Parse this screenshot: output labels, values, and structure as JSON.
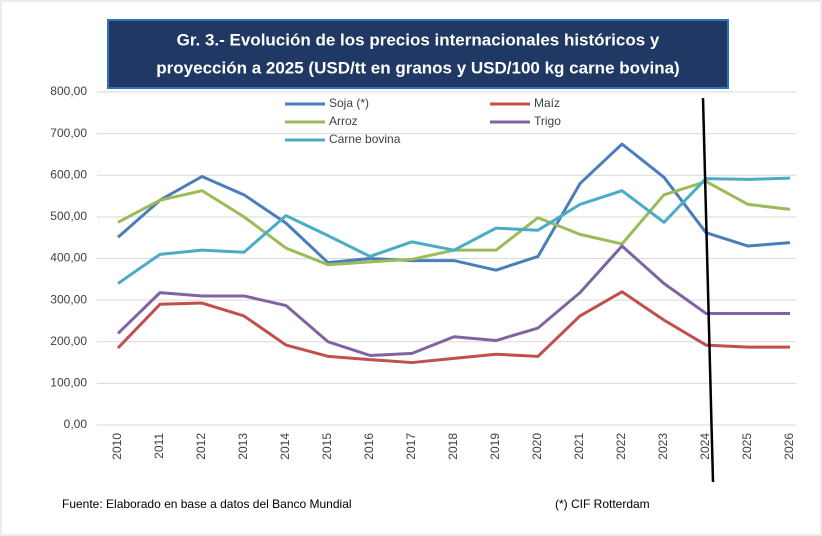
{
  "chart_data": {
    "type": "line",
    "title": [
      "Gr. 3.- Evolución de los precios internacionales históricos y",
      "proyección a 2025  (USD/tt en granos y USD/100 kg carne bovina)"
    ],
    "source": "Fuente: Elaborado en base a datos del Banco Mundial",
    "footnote": "(*) CIF Rotterdam",
    "categories": [
      "2010",
      "2011",
      "2012",
      "2013",
      "2014",
      "2015",
      "2016",
      "2017",
      "2018",
      "2019",
      "2020",
      "2021",
      "2022",
      "2023",
      "2024",
      "2025",
      "2026"
    ],
    "series": [
      {
        "name": "Soja (*)",
        "color": "#4a7ebb",
        "values": [
          451,
          540,
          597,
          553,
          485,
          390,
          400,
          395,
          395,
          372,
          405,
          580,
          675,
          595,
          462,
          430,
          438
        ]
      },
      {
        "name": "Maíz",
        "color": "#c0504d",
        "values": [
          185,
          290,
          293,
          262,
          192,
          165,
          157,
          150,
          160,
          170,
          165,
          262,
          320,
          252,
          192,
          187,
          187
        ]
      },
      {
        "name": "Arroz",
        "color": "#9bbb59",
        "values": [
          487,
          540,
          563,
          500,
          425,
          385,
          392,
          398,
          420,
          420,
          498,
          458,
          435,
          553,
          585,
          530,
          518
        ]
      },
      {
        "name": "Trigo",
        "color": "#8064a2",
        "values": [
          220,
          318,
          310,
          310,
          287,
          200,
          167,
          172,
          212,
          203,
          233,
          318,
          430,
          340,
          268,
          268,
          268
        ]
      },
      {
        "name": "Carne bovina",
        "color": "#4bacc6",
        "values": [
          340,
          410,
          420,
          415,
          503,
          455,
          405,
          440,
          420,
          473,
          468,
          530,
          563,
          487,
          592,
          590,
          593
        ]
      }
    ],
    "ylim": [
      0,
      800
    ],
    "yticks": [
      {
        "value": 0,
        "label": "0,00"
      },
      {
        "value": 100,
        "label": "100,00"
      },
      {
        "value": 200,
        "label": "200,00"
      },
      {
        "value": 300,
        "label": "300,00"
      },
      {
        "value": 400,
        "label": "400,00"
      },
      {
        "value": 500,
        "label": "500,00"
      },
      {
        "value": 600,
        "label": "600,00"
      },
      {
        "value": 700,
        "label": "700,00"
      },
      {
        "value": 800,
        "label": "800,00"
      }
    ],
    "grid": true
  }
}
